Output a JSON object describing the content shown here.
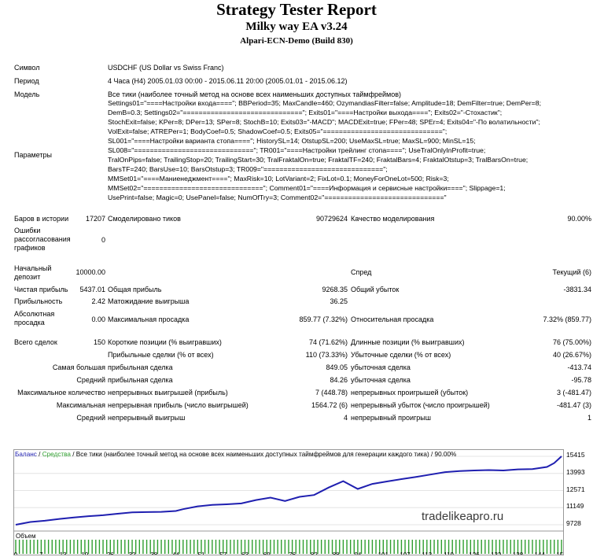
{
  "header": {
    "title": "Strategy Tester Report",
    "subtitle": "Milky way EA v3.24",
    "build": "Alpari-ECN-Demo (Build 830)"
  },
  "info": {
    "symbol_label": "Символ",
    "symbol_value": "USDCHF (US Dollar vs Swiss Franc)",
    "period_label": "Период",
    "period_value": "4 Часа (H4) 2005.01.03 00:00 - 2015.06.11 20:00 (2005.01.01 - 2015.06.12)",
    "model_label": "Модель",
    "model_value": "Все тики (наиболее точный метод на основе всех наименьших доступных таймфреймов)",
    "params_label": "Параметры",
    "params_value": "Settings01=\"====Настройки входа====\"; BBPeriod=35; MaxCandle=460; OzymandiasFilter=false; Amplitude=18; DemFilter=true; DemPer=8;\nDemB=0.3; Settings02=\"==============================\"; Exits01=\"====Настройки выхода====\"; Exits02=\"-Стохастик\";\nStochExit=false; KPer=8; DPer=13; SPer=8; StochB=10; Exits03=\"-MACD\"; MACDExit=true; FPer=48; SPEr=4; Exits04=\"-По волатильности\";\nVolExit=false; ATREPer=1; BodyCoef=0.5; ShadowCoef=0.5; Exits05=\"==============================\";\nSL001=\"====Настройки варианта стопа====\"; HistorySL=14; OtstupSL=200; UseMaxSL=true; MaxSL=900; MinSL=15;\nSL008=\"==============================\"; TR001=\"====Настройки трейлинг стопа====\"; UseTralOnlyInProfit=true;\nTralOnPips=false; TrailingStop=20; TrailingStart=30; TralFraktalOn=true; FraktalTF=240; FraktalBars=4; FraktalOtstup=3; TralBarsOn=true;\nBarsTF=240; BarsUse=10; BarsOtstup=3; TR009=\"==============================\";\nMMSet01=\"====Маниенеджмент====\"; MaxRisk=10; LotVariant=2; FixLot=0.1; MoneyForOneLot=500; Risk=3;\nMMSet02=\"==============================\"; Comment01=\"====Информация и сервисные настройки====\"; Slippage=1;\nUsePrint=false; Magic=0; UsePanel=false; NumOfTry=3; Comment02=\"==============================\""
  },
  "stats": {
    "bars_label": "Баров в истории",
    "bars_value": "17207",
    "ticks_label": "Смоделировано тиков",
    "ticks_value": "90729624",
    "quality_label": "Качество моделирования",
    "quality_value": "90.00%",
    "errors_label": "Ошибки рассогласования графиков",
    "errors_value": "0",
    "deposit_label": "Начальный депозит",
    "deposit_value": "10000.00",
    "spread_label": "Спред",
    "spread_value": "Текущий (6)",
    "net_profit_label": "Чистая прибыль",
    "net_profit_value": "5437.01",
    "gross_profit_label": "Общая прибыль",
    "gross_profit_value": "9268.35",
    "gross_loss_label": "Общий убыток",
    "gross_loss_value": "-3831.34",
    "pf_label": "Прибыльность",
    "pf_value": "2.42",
    "expected_label": "Матожидание выигрыша",
    "expected_value": "36.25",
    "abs_dd_label": "Абсолютная просадка",
    "abs_dd_value": "0.00",
    "max_dd_label": "Максимальная просадка",
    "max_dd_value": "859.77 (7.32%)",
    "rel_dd_label": "Относительная просадка",
    "rel_dd_value": "7.32% (859.77)",
    "total_label": "Всего сделок",
    "total_value": "150",
    "short_label": "Короткие позиции (% выигравших)",
    "short_value": "74 (71.62%)",
    "long_label": "Длинные позиции (% выигравших)",
    "long_value": "76 (75.00%)",
    "win_label": "Прибыльные сделки (% от всех)",
    "win_value": "110 (73.33%)",
    "loss_label": "Убыточные сделки (% от всех)",
    "loss_value": "40 (26.67%)",
    "largest_label": "Самая большая",
    "largest_win_label": "прибыльная сделка",
    "largest_win_value": "849.05",
    "largest_loss_label": "убыточная сделка",
    "largest_loss_value": "-413.74",
    "avg_label": "Средний",
    "avg_win_label": "прибыльная сделка",
    "avg_win_value": "84.26",
    "avg_loss_label": "убыточная сделка",
    "avg_loss_value": "-95.78",
    "maxcount_label": "Максимальное количество",
    "cw_label": "непрерывных выигрышей (прибыль)",
    "cw_value": "7 (448.78)",
    "cl_label": "непрерывных проигрышей (убыток)",
    "cl_value": "3 (-481.47)",
    "max_label": "Максимальная",
    "cp_label": "непрерывная прибыль (число выигрышей)",
    "cp_value": "1564.72 (6)",
    "cll_label": "непрерывный убыток (число проигрышей)",
    "cll_value": "-481.47 (3)",
    "avg2_label": "Средний",
    "acw_label": "непрерывный выигрыш",
    "acw_value": "4",
    "acl_label": "непрерывный проигрыш",
    "acl_value": "1"
  },
  "chart": {
    "legend_balance": "Баланс",
    "legend_sep1": " / ",
    "legend_equity": "Средства",
    "legend_rest": " / Все тики (наиболее точный метод на основе всех наименьших доступных таймфреймов для генерации каждого тика) / 90.00%",
    "volume_label": "Объем",
    "watermark": "tradelikeapro.ru",
    "balance_color": "#1f1fb0",
    "equity_color": "#2e9e2e"
  },
  "chart_data": {
    "type": "line",
    "title": "",
    "y_ticks": [
      "15415",
      "13993",
      "12571",
      "11149",
      "9728"
    ],
    "ylim": [
      9728,
      15415
    ],
    "x_ticks": [
      "0",
      "7",
      "13",
      "19",
      "26",
      "32",
      "38",
      "44",
      "51",
      "57",
      "63",
      "69",
      "76",
      "82",
      "88",
      "94",
      "101",
      "107",
      "113",
      "119",
      "126",
      "132",
      "138",
      "144",
      "150"
    ],
    "series": [
      {
        "name": "Баланс",
        "x": [
          0,
          4,
          8,
          12,
          16,
          20,
          24,
          28,
          32,
          36,
          40,
          44,
          46,
          50,
          54,
          58,
          62,
          66,
          70,
          74,
          78,
          82,
          86,
          90,
          94,
          98,
          102,
          106,
          110,
          114,
          118,
          122,
          126,
          130,
          134,
          138,
          142,
          146,
          148,
          150
        ],
        "values": [
          9730,
          9960,
          10060,
          10210,
          10330,
          10440,
          10520,
          10640,
          10760,
          10780,
          10800,
          10870,
          11020,
          11260,
          11380,
          11430,
          11500,
          11780,
          11980,
          11700,
          12050,
          12200,
          12820,
          13350,
          12700,
          13120,
          13320,
          13520,
          13700,
          13900,
          14100,
          14190,
          14240,
          14270,
          14240,
          14330,
          14350,
          14530,
          14850,
          15415
        ]
      }
    ]
  }
}
